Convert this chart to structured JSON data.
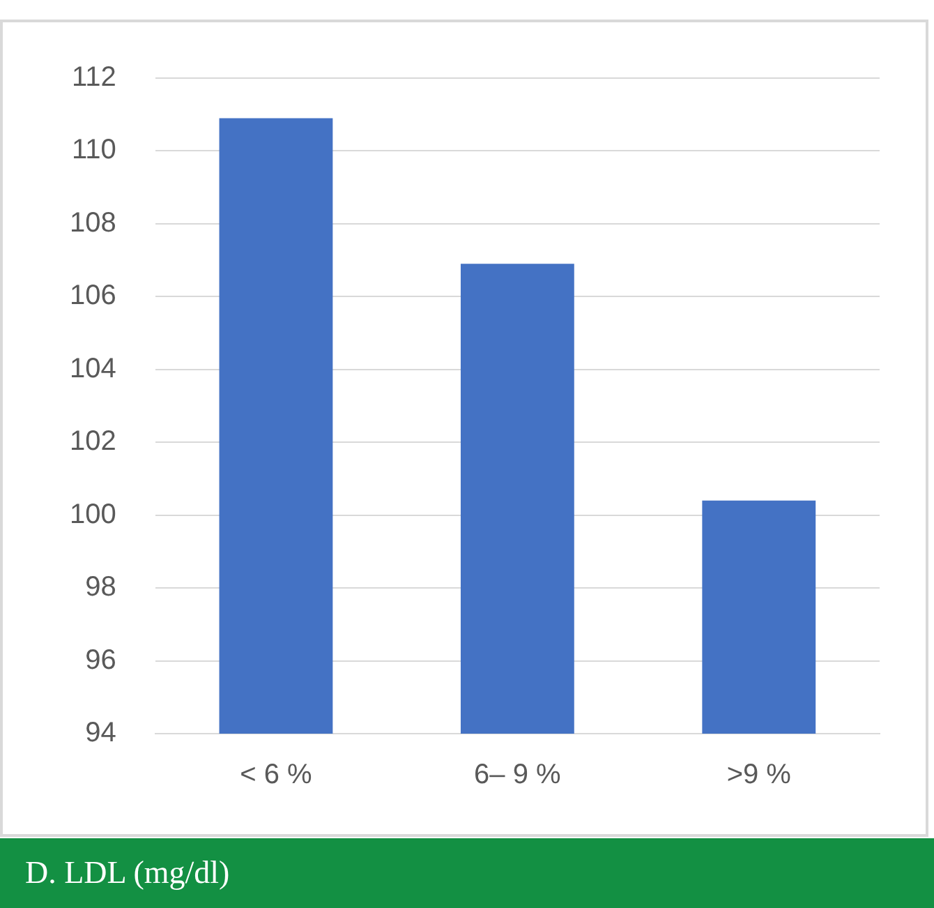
{
  "chart_data": {
    "type": "bar",
    "title": "D. LDL (mg/dl)",
    "categories": [
      "< 6 %",
      "6– 9 %",
      ">9 %"
    ],
    "values": [
      110.9,
      106.9,
      100.4
    ],
    "color": "#4472c4",
    "ylim": [
      94,
      112
    ],
    "yticks": [
      94,
      96,
      98,
      100,
      102,
      104,
      106,
      108,
      110,
      112
    ],
    "grid": "y"
  }
}
